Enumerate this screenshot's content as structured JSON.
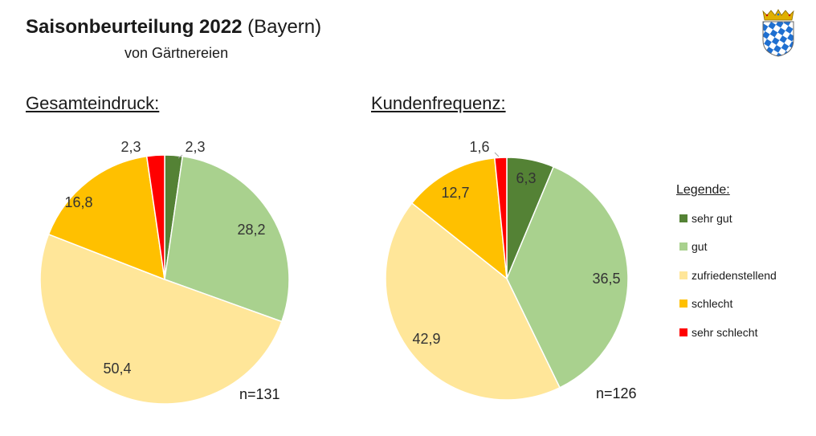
{
  "header": {
    "title_bold": "Saisonbeurteilung 2022",
    "title_rest": "(Bayern)",
    "subtitle": "von Gärtnereien"
  },
  "legend": {
    "title": "Legende:"
  },
  "colors": {
    "sehr gut": "#548235",
    "gut": "#A9D18E",
    "zufriedenstellend": "#FFE699",
    "schlecht": "#FFC000",
    "sehr schlecht": "#FF0000"
  },
  "chart_data": [
    {
      "type": "pie",
      "title": "Gesamteindruck:",
      "categories": [
        "sehr gut",
        "gut",
        "zufriedenstellend",
        "schlecht",
        "sehr schlecht"
      ],
      "values": [
        2.3,
        28.2,
        50.4,
        16.8,
        2.3
      ],
      "value_labels": [
        "2,3",
        "28,2",
        "50,4",
        "16,8",
        "2,3"
      ],
      "n_label": "n=131"
    },
    {
      "type": "pie",
      "title": "Kundenfrequenz:",
      "categories": [
        "sehr gut",
        "gut",
        "zufriedenstellend",
        "schlecht",
        "sehr schlecht"
      ],
      "values": [
        6.3,
        36.5,
        42.9,
        12.7,
        1.6
      ],
      "value_labels": [
        "6,3",
        "36,5",
        "42,9",
        "12,7",
        "1,6"
      ],
      "n_label": "n=126"
    }
  ]
}
